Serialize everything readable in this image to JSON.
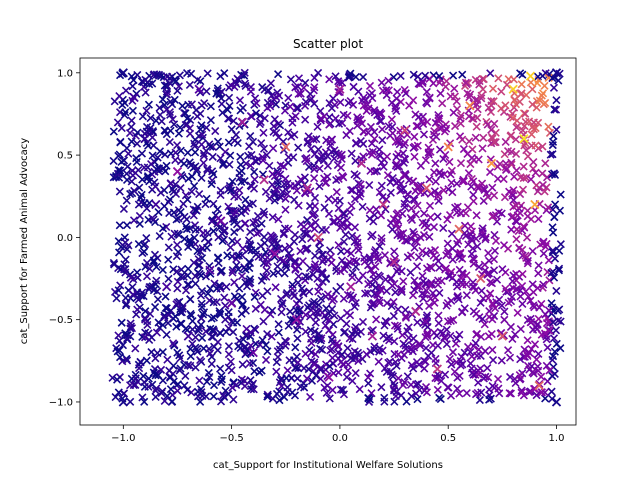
{
  "chart_data": {
    "type": "scatter",
    "title": "Scatter plot",
    "xlabel": "cat_Support for Institutional Welfare Solutions",
    "ylabel": "cat_Support for Farmed Animal Advocacy",
    "xlim": [
      -1.2,
      1.09
    ],
    "ylim": [
      -1.14,
      1.09
    ],
    "x_ticks": [
      -1.0,
      -0.5,
      0.0,
      0.5,
      1.0
    ],
    "x_tick_labels": [
      "−1.0",
      "−0.5",
      "0.0",
      "0.5",
      "1.0"
    ],
    "y_ticks": [
      -1.0,
      -0.5,
      0.0,
      0.5,
      1.0
    ],
    "y_tick_labels": [
      "−1.0",
      "−0.5",
      "0.0",
      "0.5",
      "1.0"
    ],
    "marker": "x",
    "colormap": "plasma",
    "grid": false,
    "series": [
      {
        "points": [
          {
            "x": -1.0,
            "y": -1.0,
            "c": 0.02
          },
          {
            "x": -1.0,
            "y": 1.0,
            "c": 0.02
          },
          {
            "x": 1.0,
            "y": -1.0,
            "c": 0.02
          },
          {
            "x": 1.0,
            "y": 1.0,
            "c": 0.02
          },
          {
            "x": -0.95,
            "y": 0.85,
            "c": 0.1
          },
          {
            "x": -0.9,
            "y": 0.6,
            "c": 0.08
          },
          {
            "x": -0.85,
            "y": 0.2,
            "c": 0.1
          },
          {
            "x": -0.8,
            "y": -0.3,
            "c": 0.12
          },
          {
            "x": -0.75,
            "y": 0.4,
            "c": 0.3
          },
          {
            "x": -0.7,
            "y": -0.6,
            "c": 0.1
          },
          {
            "x": -0.65,
            "y": 0.9,
            "c": 0.15
          },
          {
            "x": -0.6,
            "y": -0.2,
            "c": 0.15
          },
          {
            "x": -0.55,
            "y": 0.1,
            "c": 0.2
          },
          {
            "x": -0.5,
            "y": -0.4,
            "c": 0.2
          },
          {
            "x": -0.45,
            "y": 0.7,
            "c": 0.35
          },
          {
            "x": -0.4,
            "y": -0.7,
            "c": 0.2
          },
          {
            "x": -0.35,
            "y": 0.35,
            "c": 0.4
          },
          {
            "x": -0.3,
            "y": -0.1,
            "c": 0.3
          },
          {
            "x": -0.25,
            "y": 0.55,
            "c": 0.6
          },
          {
            "x": -0.2,
            "y": -0.5,
            "c": 0.3
          },
          {
            "x": -0.15,
            "y": 0.3,
            "c": 0.4
          },
          {
            "x": -0.1,
            "y": 0.0,
            "c": 0.5
          },
          {
            "x": -0.05,
            "y": -0.85,
            "c": 0.3
          },
          {
            "x": 0.0,
            "y": 0.9,
            "c": 0.35
          },
          {
            "x": 0.05,
            "y": -0.3,
            "c": 0.35
          },
          {
            "x": 0.1,
            "y": 0.45,
            "c": 0.4
          },
          {
            "x": 0.15,
            "y": -0.6,
            "c": 0.35
          },
          {
            "x": 0.2,
            "y": 0.2,
            "c": 0.45
          },
          {
            "x": 0.25,
            "y": -0.15,
            "c": 0.4
          },
          {
            "x": 0.3,
            "y": 0.65,
            "c": 0.5
          },
          {
            "x": 0.35,
            "y": -0.45,
            "c": 0.4
          },
          {
            "x": 0.4,
            "y": 0.3,
            "c": 0.55
          },
          {
            "x": 0.45,
            "y": -0.8,
            "c": 0.45
          },
          {
            "x": 0.5,
            "y": 0.55,
            "c": 0.7
          },
          {
            "x": 0.55,
            "y": 0.05,
            "c": 0.6
          },
          {
            "x": 0.6,
            "y": 0.8,
            "c": 0.7
          },
          {
            "x": 0.65,
            "y": -0.25,
            "c": 0.55
          },
          {
            "x": 0.7,
            "y": 0.45,
            "c": 0.75
          },
          {
            "x": 0.75,
            "y": -0.6,
            "c": 0.55
          },
          {
            "x": 0.8,
            "y": 0.9,
            "c": 0.9
          },
          {
            "x": 0.85,
            "y": 0.6,
            "c": 0.95
          },
          {
            "x": 0.9,
            "y": 0.2,
            "c": 0.8
          },
          {
            "x": 0.92,
            "y": -0.9,
            "c": 0.6
          },
          {
            "x": 0.88,
            "y": 0.98,
            "c": 0.9
          }
        ]
      }
    ]
  }
}
